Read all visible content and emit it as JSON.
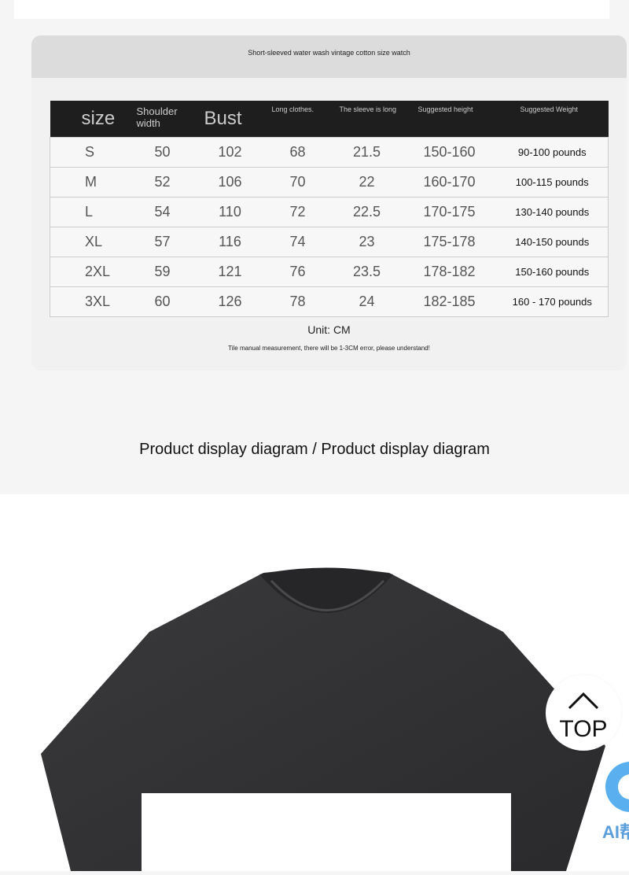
{
  "size_chart": {
    "title": "Short-sleeved water wash vintage cotton size watch",
    "headers": [
      "size",
      "Shoulder width",
      "Bust",
      "Long clothes.",
      "The sleeve is long",
      "Suggested height",
      "Suggested Weight"
    ],
    "rows": [
      [
        "S",
        "50",
        "102",
        "68",
        "21.5",
        "150-160",
        "90-100 pounds"
      ],
      [
        "M",
        "52",
        "106",
        "70",
        "22",
        "160-170",
        "100-115 pounds"
      ],
      [
        "L",
        "54",
        "110",
        "72",
        "22.5",
        "170-175",
        "130-140 pounds"
      ],
      [
        "XL",
        "57",
        "116",
        "74",
        "23",
        "175-178",
        "140-150 pounds"
      ],
      [
        "2XL",
        "59",
        "121",
        "76",
        "23.5",
        "178-182",
        "150-160 pounds"
      ],
      [
        "3XL",
        "60",
        "126",
        "78",
        "24",
        "182-185",
        "160 - 170 pounds"
      ]
    ],
    "unit": "Unit: CM",
    "note": "Tile manual measurement, there will be 1-3CM error, please understand!"
  },
  "section_title": "Product display diagram / Product display diagram",
  "top_button": {
    "label": "TOP",
    "icon": "chevron-up-icon"
  },
  "ai_button": {
    "label": "AI帮",
    "color": "#5ab0ee"
  }
}
